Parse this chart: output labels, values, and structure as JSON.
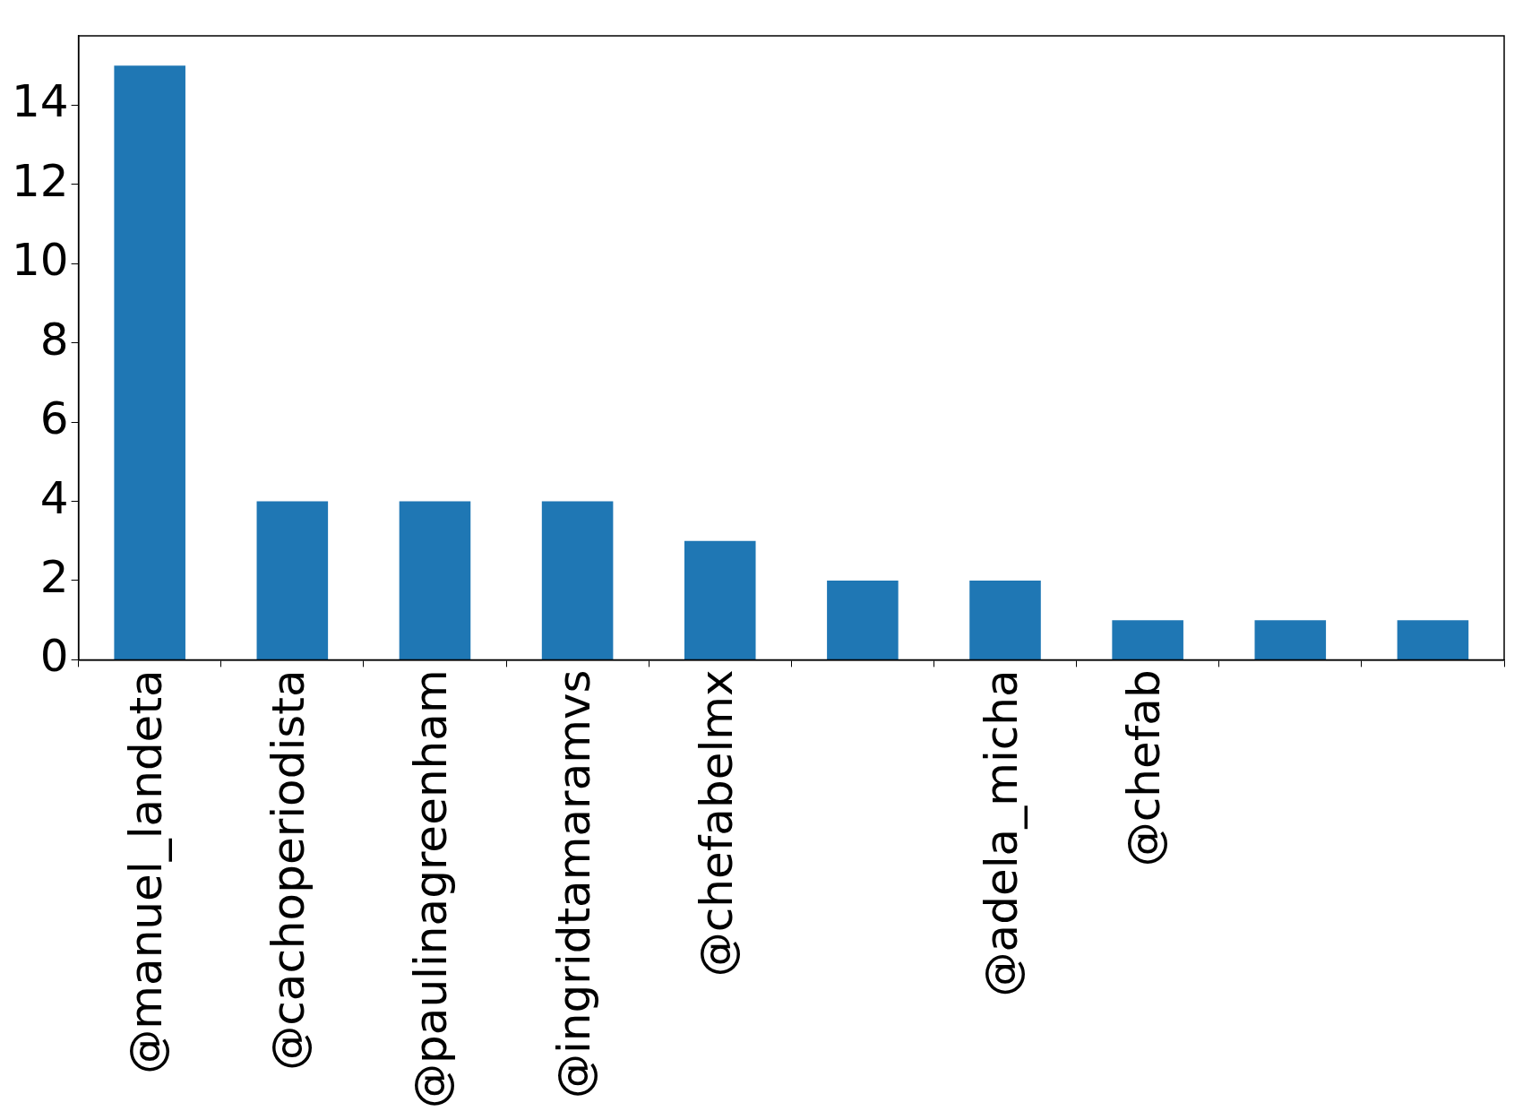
{
  "chart_data": {
    "type": "bar",
    "categories": [
      "@manuel_landeta",
      "@cachoperiodista",
      "@paulinagreenham",
      "@ingridtamaramvs",
      "@chefabelmx",
      null,
      "@adela_micha",
      "@chefab",
      null,
      null
    ],
    "values": [
      15,
      4,
      4,
      4,
      3,
      2,
      2,
      1,
      1,
      1
    ],
    "color": "#1f77b4",
    "ylim": [
      0,
      15.75
    ],
    "yticks": [
      0,
      2,
      4,
      6,
      8,
      10,
      12,
      14
    ],
    "grid": false,
    "legend": false
  }
}
